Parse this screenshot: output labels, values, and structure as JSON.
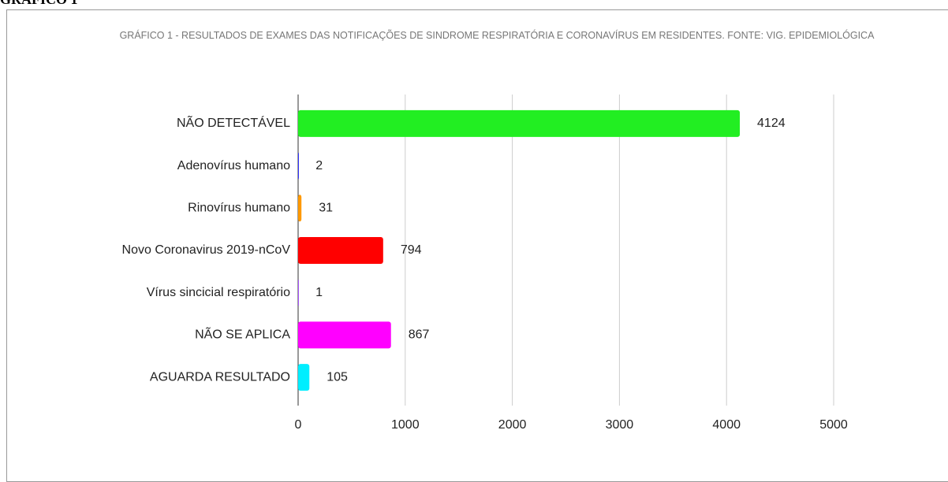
{
  "heading": "GRÁFICO 1",
  "chart_data": {
    "type": "bar",
    "orientation": "horizontal",
    "title": "GRÁFICO 1 - RESULTADOS DE EXAMES DAS NOTIFICAÇÕES DE SINDROME RESPIRATÓRIA E CORONAVÍRUS EM RESIDENTES. FONTE: VIG. EPIDEMIOLÓGICA",
    "categories": [
      "NÃO DETECTÁVEL",
      "Adenovírus humano",
      "Rinovírus humano",
      "Novo Coronavirus 2019-nCoV",
      "Vírus sincicial respiratório",
      "NÃO SE APLICA",
      "AGUARDA RESULTADO"
    ],
    "values": [
      4124,
      2,
      31,
      794,
      1,
      867,
      105
    ],
    "colors": [
      "#22ee22",
      "#3333ff",
      "#ff9900",
      "#ff0000",
      "#aa55ff",
      "#ff00ff",
      "#00eeff"
    ],
    "xlim": [
      0,
      5000
    ],
    "xticks": [
      0,
      1000,
      2000,
      3000,
      4000,
      5000
    ],
    "grid": true
  }
}
